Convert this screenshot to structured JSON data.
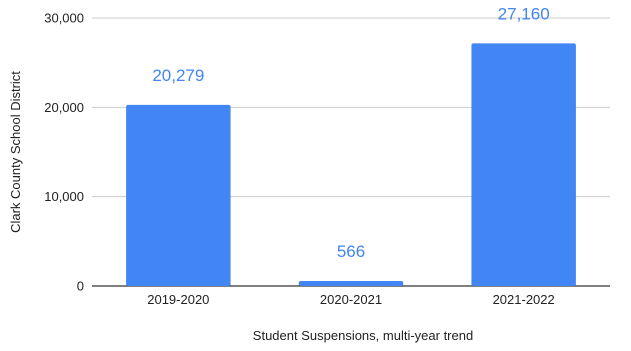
{
  "chart_data": {
    "type": "bar",
    "categories": [
      "2019-2020",
      "2020-2021",
      "2021-2022"
    ],
    "values": [
      20279,
      566,
      27160
    ],
    "data_labels": [
      "20,279",
      "566",
      "27,160"
    ],
    "title": "",
    "xlabel": "Student Suspensions, multi-year trend",
    "ylabel": "Clark County School District",
    "ylim": [
      0,
      30000
    ],
    "yticks": [
      0,
      10000,
      20000,
      30000
    ],
    "ytick_labels": [
      "0",
      "10,000",
      "20,000",
      "30,000"
    ],
    "grid": true,
    "legend": "none",
    "colors": {
      "bar": "#4285f4",
      "data_label": "#4285f4",
      "grid": "#cccccc",
      "axis": "#333333",
      "text": "#222222"
    }
  }
}
